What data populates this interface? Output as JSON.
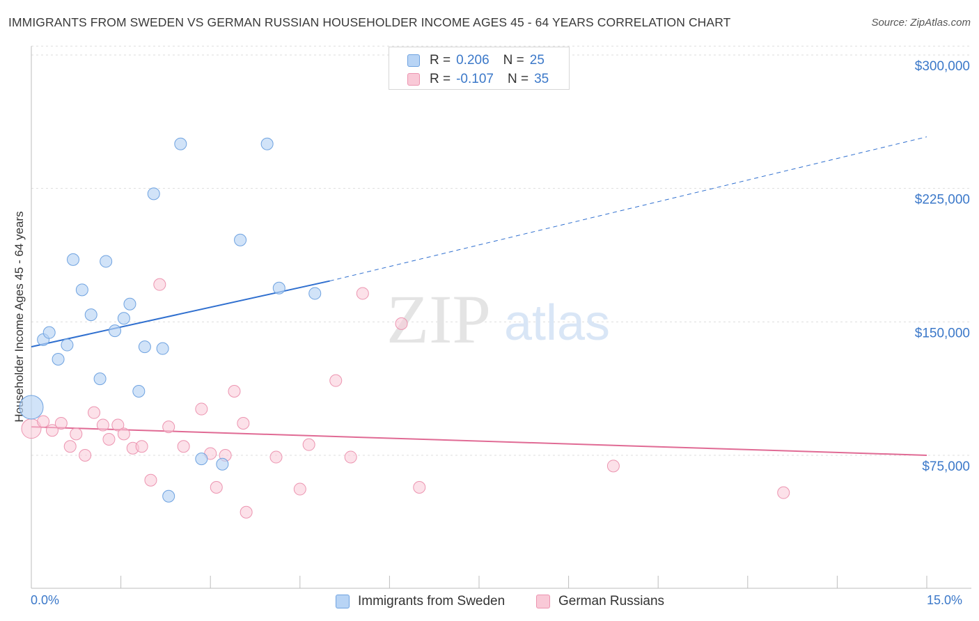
{
  "title": "IMMIGRANTS FROM SWEDEN VS GERMAN RUSSIAN HOUSEHOLDER INCOME AGES 45 - 64 YEARS CORRELATION CHART",
  "source": "Source: ZipAtlas.com",
  "watermark": {
    "zip": "ZIP",
    "atlas": "atlas"
  },
  "legend": {
    "r_label": "R =",
    "n_label": "N =",
    "series": [
      {
        "r": "0.206",
        "n": "25"
      },
      {
        "r": "-0.107",
        "n": "35"
      }
    ]
  },
  "colors": {
    "blue_fill": "#b8d4f5",
    "blue_stroke": "#6ea2e0",
    "blue_line": "#2f6fcf",
    "pink_fill": "#f9c9d7",
    "pink_stroke": "#ec94b0",
    "pink_line": "#e06a94",
    "tick_text": "#3b78c9",
    "grid": "#dddddd"
  },
  "chart_data": {
    "type": "scatter",
    "title": "IMMIGRANTS FROM SWEDEN VS GERMAN RUSSIAN HOUSEHOLDER INCOME AGES 45 - 64 YEARS CORRELATION CHART",
    "xlabel": "",
    "ylabel": "Householder Income Ages 45 - 64 years",
    "xlim": [
      0,
      15
    ],
    "ylim": [
      0,
      305000
    ],
    "x_tick_labels": [
      "0.0%",
      "15.0%"
    ],
    "y_ticks": [
      75000,
      150000,
      225000,
      300000
    ],
    "y_tick_labels": [
      "$75,000",
      "$150,000",
      "$225,000",
      "$300,000"
    ],
    "grid": true,
    "legend_position": "top-center",
    "series": [
      {
        "name": "Immigrants from Sweden",
        "color": "#b8d4f5",
        "points": [
          [
            0.0,
            102000
          ],
          [
            0.2,
            140000
          ],
          [
            0.3,
            144000
          ],
          [
            0.45,
            129000
          ],
          [
            0.6,
            137000
          ],
          [
            0.7,
            185000
          ],
          [
            0.85,
            168000
          ],
          [
            1.0,
            154000
          ],
          [
            1.15,
            118000
          ],
          [
            1.25,
            184000
          ],
          [
            1.4,
            145000
          ],
          [
            1.55,
            152000
          ],
          [
            1.65,
            160000
          ],
          [
            1.8,
            111000
          ],
          [
            1.9,
            136000
          ],
          [
            2.05,
            222000
          ],
          [
            2.2,
            135000
          ],
          [
            2.3,
            52000
          ],
          [
            2.5,
            250000
          ],
          [
            2.85,
            73000
          ],
          [
            3.2,
            70000
          ],
          [
            3.5,
            196000
          ],
          [
            3.95,
            250000
          ],
          [
            4.15,
            169000
          ],
          [
            4.75,
            166000
          ]
        ],
        "trend": {
          "x": [
            0.0,
            5.0
          ],
          "y": [
            136000,
            173000
          ],
          "dashed_extension": {
            "x": [
              5.0,
              15.0
            ],
            "y": [
              173000,
              254000
            ]
          }
        }
      },
      {
        "name": "German Russians",
        "color": "#f9c9d7",
        "points": [
          [
            0.0,
            90000
          ],
          [
            0.2,
            94000
          ],
          [
            0.35,
            89000
          ],
          [
            0.5,
            93000
          ],
          [
            0.65,
            80000
          ],
          [
            0.75,
            87000
          ],
          [
            0.9,
            75000
          ],
          [
            1.05,
            99000
          ],
          [
            1.2,
            92000
          ],
          [
            1.3,
            84000
          ],
          [
            1.45,
            92000
          ],
          [
            1.55,
            87000
          ],
          [
            1.7,
            79000
          ],
          [
            1.85,
            80000
          ],
          [
            2.0,
            61000
          ],
          [
            2.15,
            171000
          ],
          [
            2.3,
            91000
          ],
          [
            2.55,
            80000
          ],
          [
            2.85,
            101000
          ],
          [
            3.0,
            76000
          ],
          [
            3.1,
            57000
          ],
          [
            3.25,
            75000
          ],
          [
            3.4,
            111000
          ],
          [
            3.55,
            93000
          ],
          [
            3.6,
            43000
          ],
          [
            4.1,
            74000
          ],
          [
            4.5,
            56000
          ],
          [
            4.65,
            81000
          ],
          [
            5.1,
            117000
          ],
          [
            5.35,
            74000
          ],
          [
            5.55,
            166000
          ],
          [
            6.2,
            149000
          ],
          [
            6.5,
            57000
          ],
          [
            9.75,
            69000
          ],
          [
            12.6,
            54000
          ]
        ],
        "trend": {
          "x": [
            0.0,
            15.0
          ],
          "y": [
            91000,
            75000
          ]
        }
      }
    ]
  },
  "bottom_legend": {
    "items": [
      "Immigrants from Sweden",
      "German Russians"
    ]
  }
}
